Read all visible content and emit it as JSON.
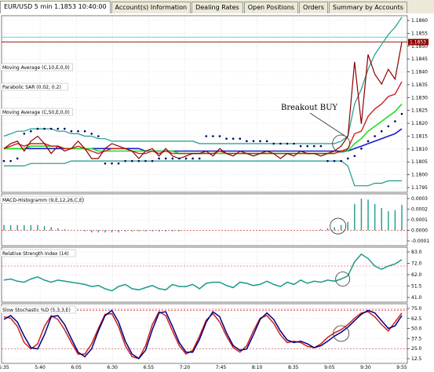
{
  "tabs": [
    {
      "label": "EUR/USD 5 min 1.1853 10:40:00",
      "active": true
    },
    {
      "label": "Account(s) Information",
      "active": false
    },
    {
      "label": "Dealing Rates",
      "active": false
    },
    {
      "label": "Open Positions",
      "active": false
    },
    {
      "label": "Orders",
      "active": false
    },
    {
      "label": "Summary by Accounts",
      "active": false
    }
  ],
  "price_tag": "1.1853",
  "annotation": "Breakout BUY",
  "colors": {
    "teal": "#2a9a8e",
    "blue": "#1a1ad0",
    "navy": "#000080",
    "red": "#d02020",
    "darkred": "#8b0000",
    "green": "#22dd22",
    "sar": "#000066",
    "bollinger": "#1a9b8b",
    "price_tag_bg": "#8b0000"
  },
  "time_labels": [
    "5:35",
    "5:40",
    "6:05",
    "6:30",
    "6:55",
    "7:20",
    "7:45",
    "8:10",
    "8:35",
    "9:05",
    "9:30",
    "9:55"
  ],
  "chart_data": [
    {
      "type": "line",
      "panel": "price",
      "indicator_labels": [
        "Moving Average (C,10,E,0,0)",
        "Parabolic SAR (0.02; 0.2)",
        "Moving Average (C,50,E,0,0)"
      ],
      "ytick_labels": [
        "1.1860",
        "1.1855",
        "1.1850",
        "1.1845",
        "1.1840",
        "1.1835",
        "1.1830",
        "1.1825",
        "1.1820",
        "1.1815",
        "1.1810",
        "1.1805",
        "1.1800",
        "1.1795"
      ],
      "ylim": [
        1.1793,
        1.1863
      ],
      "n": 60,
      "series": [
        {
          "key": "price",
          "color": "#8b0000",
          "values": [
            1.181,
            1.1812,
            1.1813,
            1.1809,
            1.1813,
            1.1815,
            1.1812,
            1.1808,
            1.1811,
            1.1809,
            1.181,
            1.1813,
            1.181,
            1.1806,
            1.1806,
            1.181,
            1.1812,
            1.1811,
            1.181,
            1.1809,
            1.1806,
            1.1809,
            1.181,
            1.1807,
            1.181,
            1.1807,
            1.1806,
            1.1807,
            1.1808,
            1.1808,
            1.1809,
            1.1807,
            1.181,
            1.1808,
            1.1807,
            1.1809,
            1.1808,
            1.1807,
            1.1808,
            1.1809,
            1.1808,
            1.1806,
            1.1808,
            1.1807,
            1.1809,
            1.1808,
            1.1808,
            1.1807,
            1.1808,
            1.1809,
            1.1811,
            1.1815,
            1.1845,
            1.182,
            1.1848,
            1.184,
            1.1836,
            1.1842,
            1.1838,
            1.1853
          ]
        },
        {
          "key": "ma10",
          "color": "#d02020",
          "values": [
            1.181,
            1.1811,
            1.1812,
            1.1811,
            1.1812,
            1.1812,
            1.1812,
            1.1811,
            1.1811,
            1.181,
            1.181,
            1.1811,
            1.181,
            1.1809,
            1.1808,
            1.1809,
            1.181,
            1.181,
            1.181,
            1.1809,
            1.1808,
            1.1808,
            1.1809,
            1.1808,
            1.1809,
            1.1808,
            1.1808,
            1.1808,
            1.1808,
            1.1808,
            1.1808,
            1.1808,
            1.1809,
            1.1808,
            1.1808,
            1.1808,
            1.1808,
            1.1808,
            1.1808,
            1.1808,
            1.1808,
            1.1808,
            1.1808,
            1.1808,
            1.1808,
            1.1808,
            1.1808,
            1.1808,
            1.1808,
            1.1808,
            1.1809,
            1.181,
            1.1816,
            1.1817,
            1.1823,
            1.1826,
            1.1828,
            1.1831,
            1.1832,
            1.1837
          ]
        },
        {
          "key": "ma50",
          "color": "#1a1ad0",
          "values": [
            1.181,
            1.181,
            1.181,
            1.181,
            1.181,
            1.181,
            1.181,
            1.181,
            1.181,
            1.181,
            1.181,
            1.181,
            1.181,
            1.181,
            1.181,
            1.181,
            1.181,
            1.181,
            1.181,
            1.181,
            1.181,
            1.1809,
            1.1809,
            1.1809,
            1.1809,
            1.1809,
            1.1809,
            1.1809,
            1.1809,
            1.1809,
            1.1809,
            1.1809,
            1.1809,
            1.1809,
            1.1809,
            1.1809,
            1.1809,
            1.1809,
            1.1809,
            1.1809,
            1.1809,
            1.1809,
            1.1809,
            1.1809,
            1.1809,
            1.1809,
            1.1809,
            1.1809,
            1.1809,
            1.1809,
            1.1809,
            1.1809,
            1.181,
            1.1811,
            1.1812,
            1.1813,
            1.1814,
            1.1815,
            1.1816,
            1.1818
          ]
        },
        {
          "key": "bb_upper",
          "color": "#1a9b8b",
          "values": [
            1.1815,
            1.1816,
            1.1817,
            1.1817,
            1.1818,
            1.1818,
            1.1818,
            1.1818,
            1.1817,
            1.1817,
            1.1816,
            1.1816,
            1.1815,
            1.1815,
            1.1814,
            1.1814,
            1.1813,
            1.1813,
            1.1813,
            1.1813,
            1.1813,
            1.1813,
            1.1813,
            1.1813,
            1.1813,
            1.1813,
            1.1813,
            1.1813,
            1.1813,
            1.1812,
            1.1812,
            1.1812,
            1.1812,
            1.1812,
            1.1812,
            1.1812,
            1.1812,
            1.1812,
            1.1812,
            1.1812,
            1.1812,
            1.1812,
            1.1812,
            1.1812,
            1.1812,
            1.1812,
            1.1812,
            1.1812,
            1.1812,
            1.1812,
            1.1813,
            1.1815,
            1.1828,
            1.1834,
            1.1842,
            1.1848,
            1.1852,
            1.1856,
            1.1859,
            1.1863
          ]
        },
        {
          "key": "bb_lower",
          "color": "#1a9b8b",
          "values": [
            1.1803,
            1.1803,
            1.1803,
            1.1803,
            1.1804,
            1.1804,
            1.1804,
            1.1804,
            1.1804,
            1.1804,
            1.1805,
            1.1805,
            1.1805,
            1.1805,
            1.1805,
            1.1805,
            1.1805,
            1.1805,
            1.1805,
            1.1805,
            1.1805,
            1.1805,
            1.1805,
            1.1805,
            1.1805,
            1.1805,
            1.1805,
            1.1805,
            1.1805,
            1.1805,
            1.1805,
            1.1805,
            1.1805,
            1.1805,
            1.1805,
            1.1805,
            1.1805,
            1.1805,
            1.1805,
            1.1805,
            1.1805,
            1.1805,
            1.1805,
            1.1805,
            1.1805,
            1.1805,
            1.1805,
            1.1805,
            1.1805,
            1.1805,
            1.1805,
            1.1803,
            1.1795,
            1.1795,
            1.1795,
            1.1796,
            1.1796,
            1.1797,
            1.1797,
            1.1797
          ]
        },
        {
          "key": "bb_mid",
          "color": "#22dd22",
          "values": [
            1.181,
            1.181,
            1.181,
            1.181,
            1.1811,
            1.1811,
            1.1811,
            1.1811,
            1.1811,
            1.181,
            1.181,
            1.181,
            1.181,
            1.181,
            1.1809,
            1.1809,
            1.1809,
            1.1809,
            1.1809,
            1.1809,
            1.1809,
            1.1809,
            1.1809,
            1.1809,
            1.1809,
            1.1809,
            1.1808,
            1.1808,
            1.1808,
            1.1808,
            1.1808,
            1.1808,
            1.1808,
            1.1808,
            1.1808,
            1.1808,
            1.1808,
            1.1808,
            1.1808,
            1.1808,
            1.1808,
            1.1808,
            1.1808,
            1.1808,
            1.1808,
            1.1808,
            1.1808,
            1.1808,
            1.1808,
            1.1808,
            1.1809,
            1.1809,
            1.1812,
            1.1814,
            1.1817,
            1.1819,
            1.1821,
            1.1823,
            1.1825,
            1.1828
          ]
        }
      ],
      "sar": [
        1.1805,
        1.1805,
        1.1806,
        1.1816,
        1.1817,
        1.1818,
        1.1818,
        1.1818,
        1.1818,
        1.1818,
        1.1817,
        1.1817,
        1.1817,
        1.1816,
        1.1815,
        1.1804,
        1.1804,
        1.1804,
        1.1805,
        1.1805,
        1.1805,
        1.1805,
        1.1805,
        1.1806,
        1.1806,
        1.1806,
        1.1806,
        1.1806,
        1.1806,
        1.1806,
        1.1815,
        1.1815,
        1.1815,
        1.1814,
        1.1814,
        1.1814,
        1.1813,
        1.1813,
        1.1813,
        1.1813,
        1.1812,
        1.1812,
        1.1812,
        1.1812,
        1.1811,
        1.1811,
        1.1811,
        1.1811,
        1.1805,
        1.1805,
        1.1805,
        1.1806,
        1.1807,
        1.181,
        1.1813,
        1.1815,
        1.1817,
        1.1819,
        1.1821,
        1.1824
      ],
      "hlines": [
        1.1855,
        1.1853
      ]
    },
    {
      "type": "bar",
      "panel": "macd",
      "label": "MACD-Histogramm (9,E,12,26,C,E)",
      "ytick_labels": [
        "0.0003",
        "0.0002",
        "0.0001",
        "0.0000",
        "-0.0001"
      ],
      "ylim": [
        -0.00013,
        0.00033
      ],
      "values": [
        5e-05,
        5e-05,
        5e-05,
        5e-05,
        5e-05,
        5e-05,
        4e-05,
        3e-05,
        2e-05,
        1e-05,
        0.0,
        0.0,
        -1e-05,
        -2e-05,
        -2e-05,
        -2e-05,
        -2e-05,
        -2e-05,
        -1e-05,
        -1e-05,
        -1e-05,
        -1e-05,
        -1e-05,
        -1e-05,
        -1e-05,
        -1e-05,
        -1e-05,
        0.0,
        0.0,
        0.0,
        0.0,
        0.0,
        0.0,
        0.0,
        0.0,
        0.0,
        0.0,
        0.0,
        0.0,
        0.0,
        0.0,
        0.0,
        0.0,
        0.0,
        0.0,
        0.0,
        0.0,
        1e-05,
        2e-05,
        3e-05,
        5e-05,
        8e-05,
        0.00025,
        0.0003,
        0.00029,
        0.00025,
        0.00021,
        0.00018,
        0.00019,
        0.00024
      ]
    },
    {
      "type": "line",
      "panel": "rsi",
      "label": "Relative Strength Index (14)",
      "ytick_labels": [
        "83.0",
        "72.0",
        "62.0",
        "51.5",
        "41.0"
      ],
      "ylim": [
        38,
        86
      ],
      "levels": [
        70,
        30
      ],
      "values": [
        57,
        58,
        56,
        55,
        58,
        60,
        57,
        55,
        57,
        56,
        55,
        54,
        53,
        51,
        52,
        49,
        47,
        51,
        53,
        49,
        48,
        50,
        52,
        49,
        48,
        53,
        51,
        51,
        53,
        49,
        54,
        55,
        55,
        52,
        50,
        55,
        54,
        52,
        53,
        56,
        53,
        51,
        55,
        53,
        57,
        54,
        56,
        55,
        57,
        56,
        58,
        61,
        74,
        81,
        77,
        70,
        67,
        70,
        72,
        76
      ]
    },
    {
      "type": "line",
      "panel": "stoch",
      "label": "Slow Stochastic %D (5,3,3,E)",
      "ytick_labels": [
        "75.0",
        "62.5",
        "50.0",
        "37.5",
        "25.0",
        "12.5"
      ],
      "ylim": [
        0,
        88
      ],
      "levels": [
        80,
        20
      ],
      "series": [
        {
          "key": "k",
          "color": "#d02020",
          "values": [
            70,
            68,
            55,
            30,
            20,
            28,
            55,
            72,
            66,
            50,
            30,
            12,
            12,
            28,
            52,
            74,
            75,
            55,
            25,
            8,
            5,
            25,
            58,
            78,
            72,
            48,
            25,
            12,
            18,
            40,
            65,
            75,
            62,
            40,
            22,
            15,
            25,
            48,
            68,
            72,
            60,
            42,
            30,
            32,
            30,
            24,
            22,
            28,
            38,
            45,
            50,
            58,
            68,
            76,
            78,
            70,
            58,
            48,
            62,
            76
          ]
        },
        {
          "key": "d",
          "color": "#000080",
          "values": [
            66,
            72,
            62,
            40,
            22,
            20,
            42,
            70,
            72,
            58,
            36,
            15,
            8,
            20,
            48,
            72,
            80,
            62,
            32,
            12,
            5,
            18,
            50,
            76,
            78,
            55,
            30,
            15,
            15,
            35,
            62,
            78,
            70,
            45,
            25,
            18,
            20,
            42,
            66,
            76,
            66,
            48,
            34,
            30,
            32,
            28,
            22,
            25,
            32,
            40,
            46,
            54,
            64,
            74,
            80,
            76,
            64,
            52,
            56,
            72
          ]
        }
      ]
    }
  ]
}
